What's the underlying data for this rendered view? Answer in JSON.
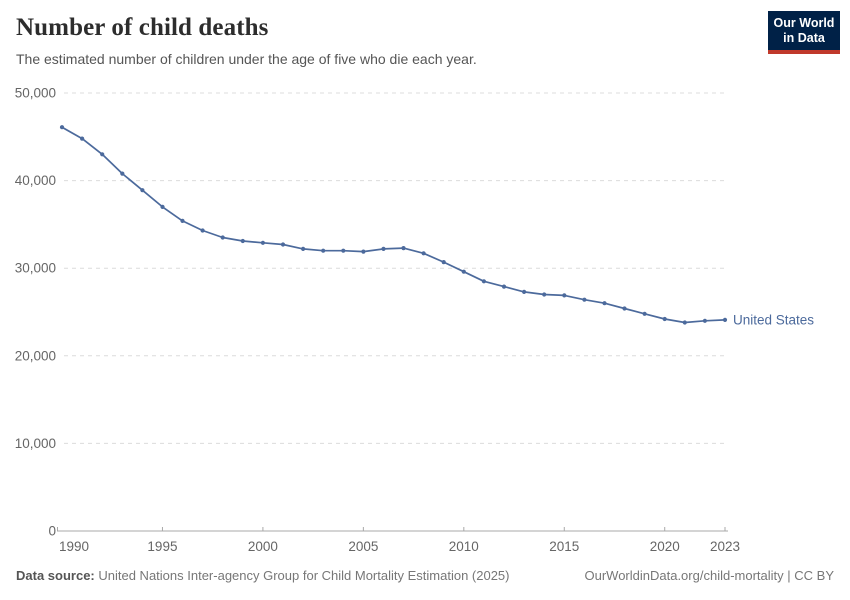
{
  "header": {
    "title": "Number of child deaths",
    "subtitle": "The estimated number of children under the age of five who die each year.",
    "logo": {
      "line1": "Our World",
      "line2": "in Data",
      "bg_color": "#002147",
      "accent_color": "#c0392b"
    }
  },
  "footer": {
    "source_label": "Data source:",
    "source_text": " United Nations Inter-agency Group for Child Mortality Estimation (2025)",
    "url": "OurWorldinData.org/child-mortality",
    "separator": " | ",
    "license": "CC BY"
  },
  "chart_data": {
    "type": "line",
    "title": "Number of child deaths",
    "subtitle": "The estimated number of children under the age of five who die each year.",
    "xlabel": "",
    "ylabel": "",
    "xlim": [
      1990,
      2023
    ],
    "ylim": [
      0,
      50000
    ],
    "grid": "horizontal-dashed",
    "legend": "end-of-line-label",
    "xticks": {
      "values": [
        1990,
        1995,
        2000,
        2005,
        2010,
        2015,
        2020,
        2023
      ],
      "labels": [
        "1990",
        "1995",
        "2000",
        "2005",
        "2010",
        "2015",
        "2020",
        "2023"
      ]
    },
    "yticks": {
      "values": [
        0,
        10000,
        20000,
        30000,
        40000,
        50000
      ],
      "labels": [
        "0",
        "10,000",
        "20,000",
        "30,000",
        "40,000",
        "50,000"
      ]
    },
    "series": [
      {
        "name": "United States",
        "color": "#4C6A9C",
        "x": [
          1990,
          1991,
          1992,
          1993,
          1994,
          1995,
          1996,
          1997,
          1998,
          1999,
          2000,
          2001,
          2002,
          2003,
          2004,
          2005,
          2006,
          2007,
          2008,
          2009,
          2010,
          2011,
          2012,
          2013,
          2014,
          2015,
          2016,
          2017,
          2018,
          2019,
          2020,
          2021,
          2022,
          2023
        ],
        "values": [
          46100,
          44800,
          43000,
          40800,
          38900,
          37000,
          35400,
          34300,
          33500,
          33100,
          32900,
          32700,
          32200,
          32000,
          32000,
          31900,
          32200,
          32300,
          31700,
          30700,
          29600,
          28500,
          27900,
          27300,
          27000,
          26900,
          26400,
          26000,
          25400,
          24800,
          24200,
          23800,
          24000,
          24100
        ]
      }
    ]
  }
}
